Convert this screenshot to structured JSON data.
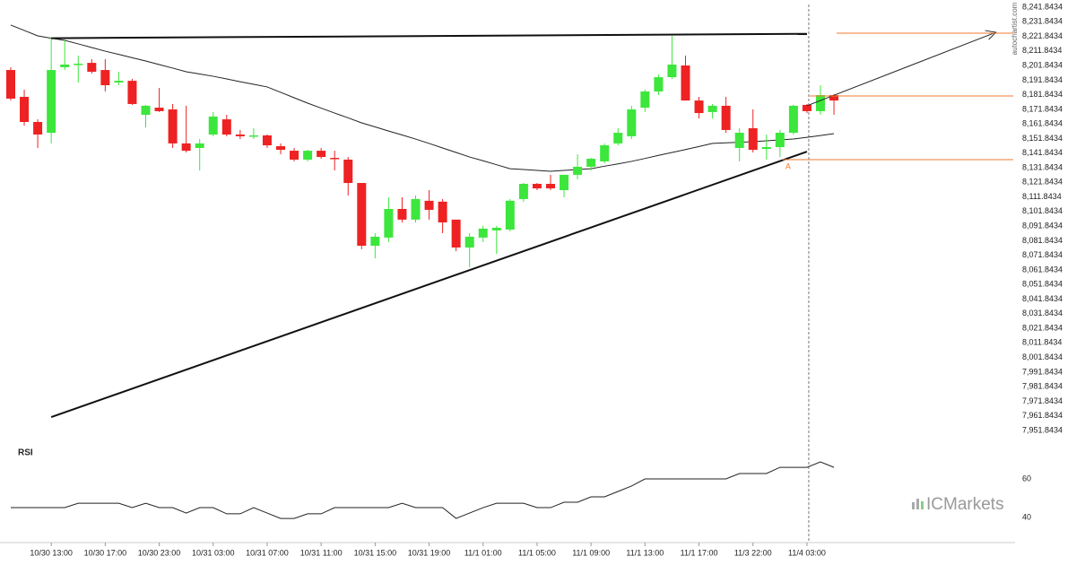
{
  "source": "autochartist.com",
  "brand": "ICMarkets",
  "chart_data": [
    {
      "type": "candlestick",
      "categories": [
        null,
        null,
        null,
        "10/30 13:00",
        null,
        null,
        null,
        "10/30 17:00",
        null,
        null,
        null,
        "10/30 23:00",
        null,
        null,
        null,
        "10/31 03:00",
        null,
        null,
        null,
        "10/31 07:00",
        null,
        null,
        null,
        "10/31 11:00",
        null,
        null,
        null,
        "10/31 15:00",
        null,
        null,
        null,
        "10/31 19:00",
        null,
        null,
        null,
        "11/1 01:00",
        null,
        null,
        null,
        "11/1 05:00",
        null,
        null,
        null,
        "11/1 09:00",
        null,
        null,
        null,
        "11/1 13:00",
        null,
        null,
        null,
        "11/1 17:00",
        null,
        null,
        null,
        "11/3 22:00",
        null,
        null,
        null,
        "11/4 03:00",
        null,
        null
      ],
      "open": [
        8198.8,
        8180.4,
        8163.2,
        8155.8,
        8200.7,
        8202.5,
        8203.7,
        8198.8,
        8190.2,
        8191.4,
        8168.1,
        8173.0,
        8171.8,
        8148.5,
        8145.4,
        8154.6,
        8165.0,
        8154.6,
        8153.4,
        8154.0,
        8146.6,
        8143.5,
        8137.4,
        8143.5,
        8138.6,
        8137.4,
        8121.4,
        8078.4,
        8084.0,
        8103.6,
        8096.3,
        8109.2,
        8108.6,
        8096.3,
        8077.2,
        8084.0,
        8088.9,
        8089.5,
        8110.4,
        8120.8,
        8120.8,
        8116.5,
        8127.0,
        8132.5,
        8136.2,
        8148.5,
        8153.4,
        8173.0,
        8184.1,
        8193.9,
        8201.9,
        8177.9,
        8170.0,
        8174.3,
        8145.4,
        8158.9,
        8144.7,
        8146.0,
        8155.8,
        8174.9,
        8170.6,
        8181.6
      ],
      "high": [
        8200.7,
        8185.3,
        8165.0,
        8220.9,
        8219.1,
        8208.7,
        8206.2,
        8206.2,
        8197.6,
        8192.7,
        8174.9,
        8186.5,
        8175.5,
        8174.3,
        8151.5,
        8170.0,
        8168.1,
        8157.7,
        8158.9,
        8154.6,
        8148.5,
        8145.4,
        8144.1,
        8145.4,
        8143.5,
        8139.2,
        8121.4,
        8087.0,
        8111.6,
        8111.6,
        8112.8,
        8116.5,
        8110.4,
        8096.3,
        8087.0,
        8092.0,
        8092.0,
        8110.4,
        8121.4,
        8121.4,
        8127.0,
        8127.0,
        8141.1,
        8138.6,
        8148.5,
        8158.9,
        8174.3,
        8185.3,
        8195.7,
        8222.2,
        8208.7,
        8180.4,
        8175.5,
        8180.4,
        8158.9,
        8171.8,
        8154.6,
        8157.7,
        8174.9,
        8175.5,
        8188.4,
        8182.2
      ],
      "low": [
        8177.9,
        8160.7,
        8145.4,
        8148.5,
        8198.8,
        8190.2,
        8196.3,
        8184.1,
        8188.4,
        8174.9,
        8159.5,
        8170.0,
        8145.4,
        8142.3,
        8130.0,
        8153.4,
        8153.4,
        8151.5,
        8151.5,
        8145.4,
        8141.1,
        8136.2,
        8136.2,
        8138.0,
        8130.0,
        8112.8,
        8076.0,
        8069.8,
        8080.9,
        8094.4,
        8094.4,
        8096.3,
        8087.0,
        8074.7,
        8063.6,
        8080.9,
        8072.8,
        8088.3,
        8108.6,
        8116.5,
        8116.5,
        8111.6,
        8123.9,
        8130.0,
        8134.9,
        8147.2,
        8151.5,
        8170.0,
        8181.6,
        8192.7,
        8177.9,
        8165.6,
        8165.6,
        8155.8,
        8136.2,
        8142.3,
        8137.4,
        8139.2,
        8154.6,
        8169.3,
        8168.1,
        8168.1
      ],
      "close": [
        8179.2,
        8163.2,
        8154.6,
        8198.8,
        8202.5,
        8203.1,
        8197.6,
        8188.4,
        8191.4,
        8175.5,
        8174.3,
        8170.6,
        8148.5,
        8143.5,
        8148.5,
        8166.9,
        8154.6,
        8153.4,
        8154.0,
        8147.2,
        8144.1,
        8137.4,
        8143.5,
        8139.2,
        8138.0,
        8121.4,
        8078.4,
        8084.6,
        8103.6,
        8096.3,
        8110.4,
        8103.0,
        8094.4,
        8077.2,
        8084.6,
        8090.1,
        8090.7,
        8109.2,
        8120.8,
        8117.7,
        8117.7,
        8127.0,
        8132.5,
        8138.0,
        8147.2,
        8155.8,
        8171.8,
        8184.1,
        8193.9,
        8202.5,
        8177.9,
        8169.3,
        8174.3,
        8157.7,
        8155.8,
        8144.1,
        8146.0,
        8155.8,
        8174.3,
        8170.6,
        8181.6,
        8177.9
      ],
      "up_color": "#3ce63c",
      "down_color": "#ee2222",
      "ma": [
        8229.6,
        8225.9,
        8222.2,
        8220.6,
        8219.1,
        8216.7,
        8214.2,
        8211.7,
        8209.5,
        8207.2,
        8205.0,
        8202.5,
        8200.1,
        8197.6,
        8196.1,
        8194.5,
        8192.7,
        8190.8,
        8189.0,
        8187.2,
        8183.5,
        8179.8,
        8176.1,
        8172.7,
        8169.3,
        8166.0,
        8162.6,
        8159.8,
        8157.0,
        8154.3,
        8151.5,
        8148.5,
        8145.4,
        8142.3,
        8139.2,
        8136.6,
        8133.9,
        8131.2,
        8130.6,
        8130.0,
        8129.4,
        8130.0,
        8130.6,
        8131.2,
        8132.9,
        8134.5,
        8136.2,
        8138.2,
        8140.3,
        8142.3,
        8144.3,
        8146.4,
        8148.5,
        8148.9,
        8149.3,
        8149.7,
        8150.3,
        8150.9,
        8151.5,
        8152.7,
        8153.9,
        8155.2
      ],
      "trendlines": [
        {
          "x": [
            3,
            59
          ],
          "y": [
            8220.6,
            8223.6
          ]
        },
        {
          "x": [
            3,
            59
          ],
          "y": [
            7961.0,
            8142.9
          ]
        }
      ],
      "arrow": {
        "x": [
          59,
          73
        ],
        "y": [
          8174.3,
          8224.6
        ]
      },
      "levels": [
        {
          "value": 8224.0,
          "from": 61.2
        },
        {
          "value": 8181.0,
          "from": 59.2
        },
        {
          "value": 8137.4,
          "from": 57.2
        }
      ],
      "level_color": "#f07a30",
      "annotations": [
        {
          "text": "A",
          "x": 57.6,
          "y": 8132.5
        }
      ],
      "cursor_index": 59,
      "ylim": [
        7951.8434,
        8241.8434
      ],
      "yticks": [
        {
          "value": 8241.8434,
          "label": "8,241.8434"
        },
        {
          "value": 8231.8434,
          "label": "8,231.8434"
        },
        {
          "value": 8221.8434,
          "label": "8,221.8434"
        },
        {
          "value": 8211.8434,
          "label": "8,211.8434"
        },
        {
          "value": 8201.8434,
          "label": "8,201.8434"
        },
        {
          "value": 8191.8434,
          "label": "8,191.8434"
        },
        {
          "value": 8181.8434,
          "label": "8,181.8434"
        },
        {
          "value": 8171.8434,
          "label": "8,171.8434"
        },
        {
          "value": 8161.8434,
          "label": "8,161.8434"
        },
        {
          "value": 8151.8434,
          "label": "8,151.8434"
        },
        {
          "value": 8141.8434,
          "label": "8,141.8434"
        },
        {
          "value": 8131.8434,
          "label": "8,131.8434"
        },
        {
          "value": 8121.8434,
          "label": "8,121.8434"
        },
        {
          "value": 8111.8434,
          "label": "8,111.8434"
        },
        {
          "value": 8101.8434,
          "label": "8,101.8434"
        },
        {
          "value": 8091.8434,
          "label": "8,091.8434"
        },
        {
          "value": 8081.8434,
          "label": "8,081.8434"
        },
        {
          "value": 8071.8434,
          "label": "8,071.8434"
        },
        {
          "value": 8061.8434,
          "label": "8,061.8434"
        },
        {
          "value": 8051.8434,
          "label": "8,051.8434"
        },
        {
          "value": 8041.8434,
          "label": "8,041.8434"
        },
        {
          "value": 8031.8434,
          "label": "8,031.8434"
        },
        {
          "value": 8021.8434,
          "label": "8,021.8434"
        },
        {
          "value": 8011.8434,
          "label": "8,011.8434"
        },
        {
          "value": 8001.8434,
          "label": "8,001.8434"
        },
        {
          "value": 7991.8434,
          "label": "7,991.8434"
        },
        {
          "value": 7981.8434,
          "label": "7,981.8434"
        },
        {
          "value": 7971.8434,
          "label": "7,971.8434"
        },
        {
          "value": 7961.8434,
          "label": "7,961.8434"
        },
        {
          "value": 7951.8434,
          "label": "7,951.8434"
        }
      ]
    },
    {
      "type": "line",
      "title": "RSI",
      "color": "#222222",
      "values": [
        45.1,
        45.1,
        45.1,
        45.1,
        45.1,
        47.4,
        47.4,
        47.4,
        47.4,
        45.1,
        47.4,
        45.1,
        45.1,
        42.3,
        45.1,
        45.1,
        41.9,
        41.9,
        45.1,
        42.3,
        39.5,
        39.5,
        41.9,
        41.9,
        45.1,
        45.1,
        45.1,
        45.1,
        45.1,
        47.4,
        45.1,
        45.1,
        45.1,
        39.5,
        42.3,
        45.1,
        47.4,
        47.4,
        47.4,
        45.1,
        45.1,
        47.9,
        47.9,
        50.7,
        50.7,
        53.5,
        56.3,
        60,
        60,
        60,
        60,
        60,
        60,
        60,
        62.8,
        62.8,
        62.8,
        66,
        66,
        66,
        68.8,
        66
      ],
      "ylim": [
        34,
        76
      ],
      "yticks": [
        40,
        60
      ]
    }
  ]
}
